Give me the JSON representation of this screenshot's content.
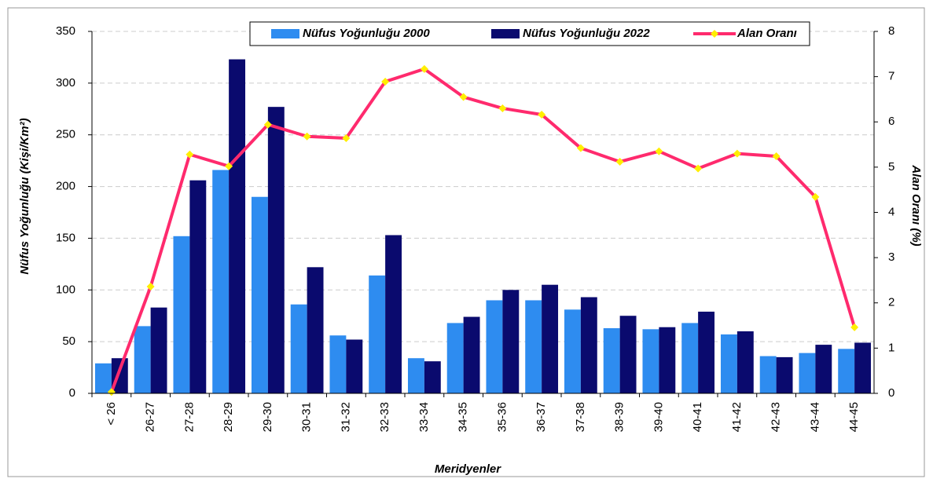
{
  "chart_data": {
    "type": "bar",
    "categories": [
      "< 26",
      "26-27",
      "27-28",
      "28-29",
      "29-30",
      "30-31",
      "31-32",
      "32-33",
      "33-34",
      "34-35",
      "35-36",
      "36-37",
      "37-38",
      "38-39",
      "39-40",
      "40-41",
      "41-42",
      "42-43",
      "43-44",
      "44-45"
    ],
    "series": [
      {
        "name": "Nüfus Yoğunluğu 2000",
        "type": "bar",
        "color": "#2e8cf0",
        "values": [
          29,
          65,
          152,
          216,
          190,
          86,
          56,
          114,
          34,
          68,
          90,
          90,
          81,
          63,
          62,
          68,
          57,
          36,
          39,
          43
        ]
      },
      {
        "name": "Nüfus Yoğunluğu 2022",
        "type": "bar",
        "color": "#0a0a6e",
        "values": [
          34,
          83,
          206,
          323,
          277,
          122,
          52,
          153,
          31,
          74,
          100,
          105,
          93,
          75,
          64,
          79,
          60,
          35,
          47,
          49
        ]
      },
      {
        "name": "Alan Oranı",
        "type": "line",
        "axis": "y2",
        "color": "#ff2a6d",
        "marker_color": "#ffee00",
        "values": [
          0.03,
          2.36,
          5.28,
          5.02,
          5.94,
          5.68,
          5.64,
          6.89,
          7.17,
          6.55,
          6.3,
          6.16,
          5.42,
          5.12,
          5.35,
          4.97,
          5.3,
          5.24,
          4.34,
          1.46
        ]
      }
    ],
    "x_label": "Meridyenler",
    "y_label": "Nüfus Yoğunluğu  (Kişi/Km²)",
    "y2_label": "Alan Oranı (%)",
    "ylim": [
      0,
      350
    ],
    "yticks": [
      0,
      50,
      100,
      150,
      200,
      250,
      300,
      350
    ],
    "y2lim": [
      0,
      8
    ],
    "y2ticks": [
      0,
      1,
      2,
      3,
      4,
      5,
      6,
      7,
      8
    ],
    "grid": true,
    "legend": "top"
  }
}
